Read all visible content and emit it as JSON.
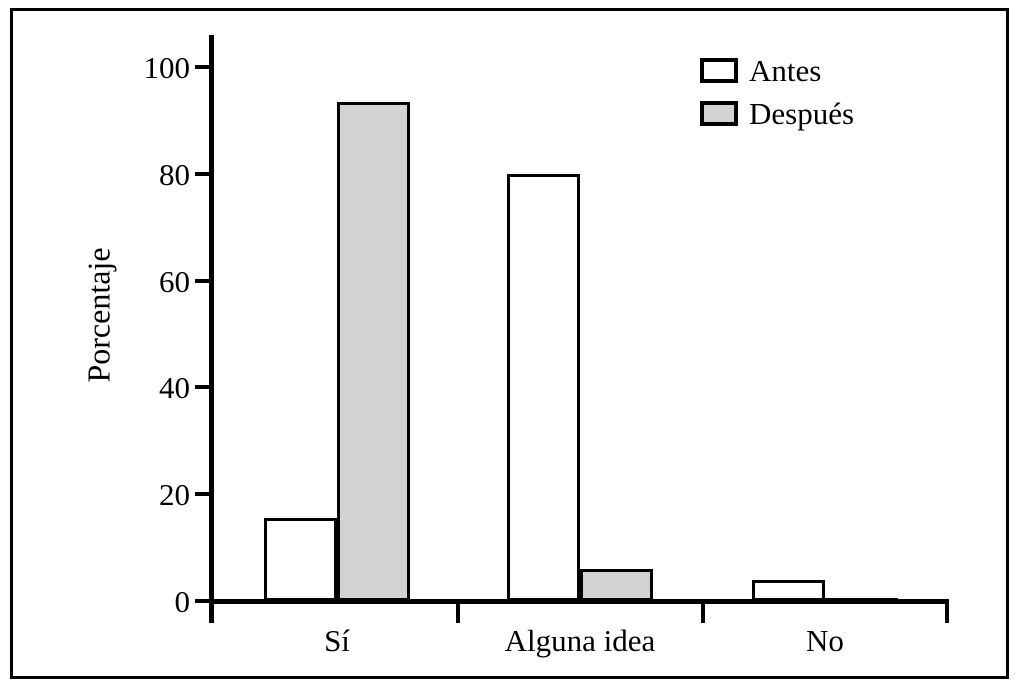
{
  "chart_data": {
    "type": "bar",
    "title": "",
    "xlabel": "",
    "ylabel": "Porcentaje",
    "categories": [
      "Sí",
      "Alguna idea",
      "No"
    ],
    "series": [
      {
        "name": "Antes",
        "color": "#ffffff",
        "values": [
          15.5,
          80,
          4
        ]
      },
      {
        "name": "Después",
        "color": "#d2d2d2",
        "values": [
          93.5,
          6,
          0.5
        ]
      }
    ],
    "ylim": [
      0,
      100
    ],
    "yticks": [
      0,
      20,
      40,
      60,
      80,
      100
    ],
    "grid": false,
    "legend_position": "top-right",
    "colors": {
      "axis": "#000000",
      "bar_border": "#000000",
      "antes_fill": "#ffffff",
      "despues_fill": "#d2d2d2"
    }
  }
}
